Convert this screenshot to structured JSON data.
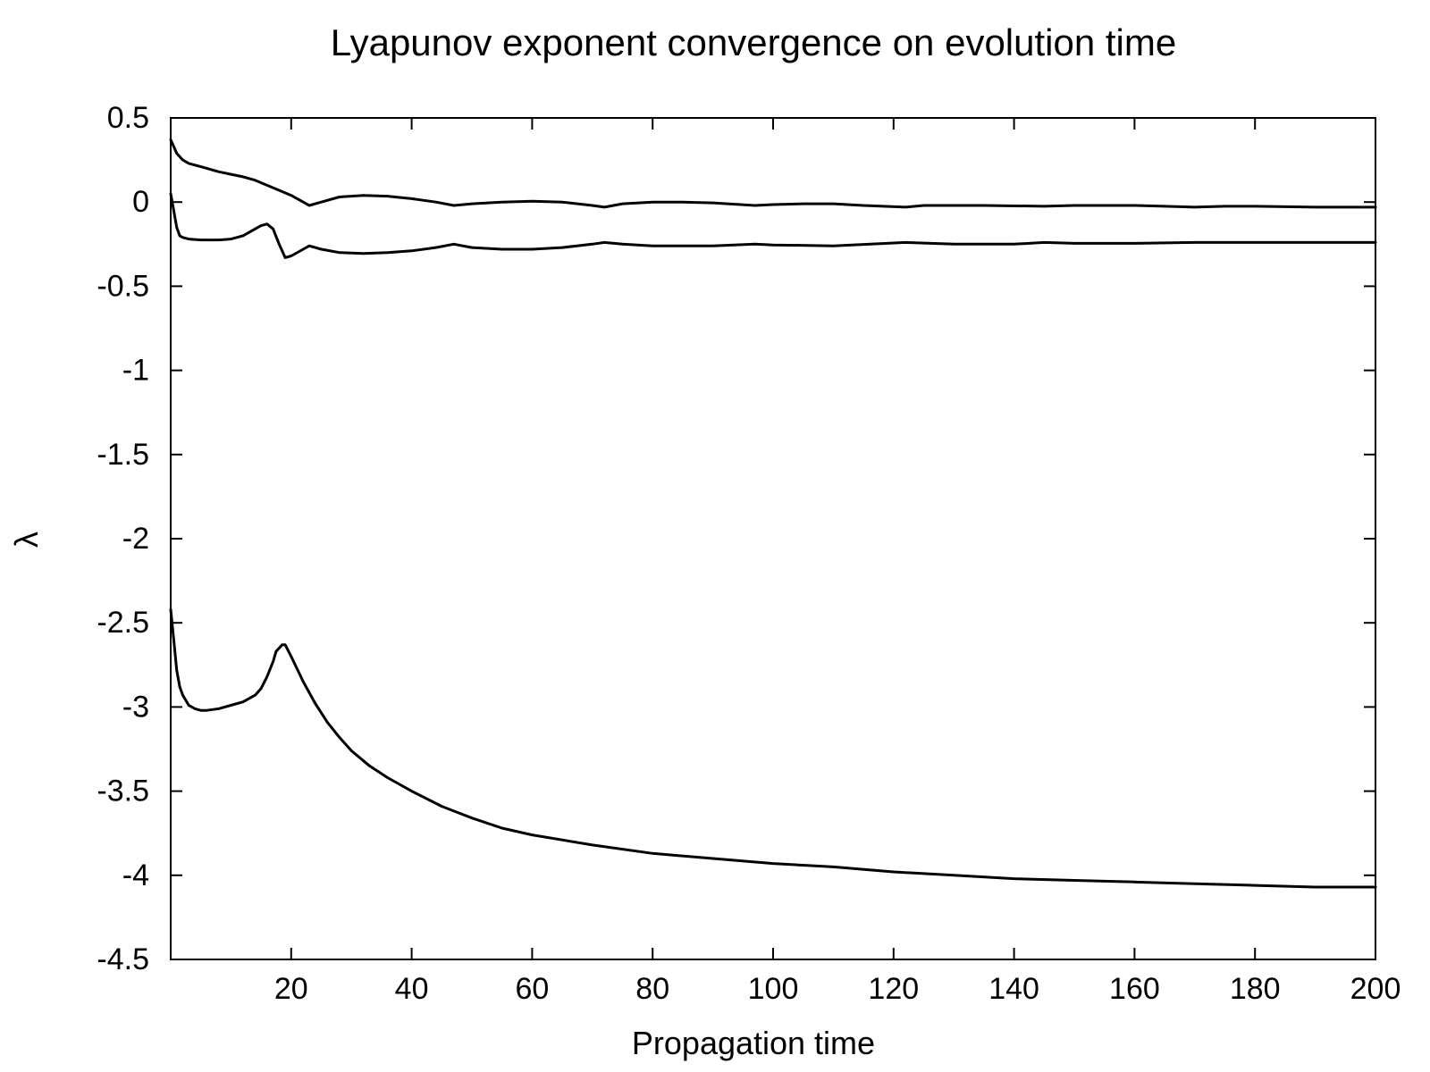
{
  "chart_data": {
    "type": "line",
    "title": "Lyapunov exponent convergence on evolution time",
    "xlabel": "Propagation time",
    "ylabel": "λ",
    "xlim": [
      0,
      200
    ],
    "ylim": [
      -4.5,
      0.5
    ],
    "xticks": [
      20,
      40,
      60,
      80,
      100,
      120,
      140,
      160,
      180,
      200
    ],
    "yticks": [
      0.5,
      0,
      -0.5,
      -1,
      -1.5,
      -2,
      -2.5,
      -3,
      -3.5,
      -4,
      -4.5
    ],
    "xtick_labels": [
      "20",
      "40",
      "60",
      "80",
      "100",
      "120",
      "140",
      "160",
      "180",
      "200"
    ],
    "ytick_labels": [
      "0.5",
      "0",
      "-0.5",
      "-1",
      "-1.5",
      "-2",
      "-2.5",
      "-3",
      "-3.5",
      "-4",
      "-4.5"
    ],
    "grid": false,
    "legend": "none",
    "line_color": "#000000",
    "series": [
      {
        "x": [
          0,
          0.5,
          1,
          2,
          3,
          5,
          8,
          10,
          12,
          14,
          16,
          18,
          20,
          22,
          23,
          25,
          28,
          32,
          36,
          40,
          44,
          47,
          50,
          55,
          60,
          65,
          70,
          72,
          75,
          80,
          85,
          90,
          97,
          100,
          105,
          110,
          115,
          122,
          125,
          130,
          135,
          145,
          150,
          155,
          160,
          165,
          170,
          175,
          180,
          190,
          200
        ],
        "y": [
          0.37,
          0.33,
          0.29,
          0.25,
          0.23,
          0.21,
          0.18,
          0.165,
          0.15,
          0.13,
          0.1,
          0.07,
          0.04,
          0.0,
          -0.02,
          0.0,
          0.03,
          0.04,
          0.035,
          0.02,
          0.0,
          -0.02,
          -0.01,
          0.0,
          0.005,
          0.0,
          -0.02,
          -0.03,
          -0.01,
          0.0,
          0.0,
          -0.005,
          -0.02,
          -0.015,
          -0.01,
          -0.01,
          -0.02,
          -0.03,
          -0.02,
          -0.02,
          -0.02,
          -0.025,
          -0.02,
          -0.02,
          -0.02,
          -0.025,
          -0.03,
          -0.025,
          -0.025,
          -0.03,
          -0.03
        ]
      },
      {
        "x": [
          0,
          0.5,
          1,
          1.5,
          2,
          3,
          5,
          8,
          10,
          12,
          14,
          15,
          16,
          17,
          18,
          19,
          20,
          22,
          23,
          25,
          28,
          32,
          36,
          40,
          44,
          47,
          50,
          55,
          60,
          65,
          70,
          72,
          75,
          80,
          90,
          97,
          100,
          110,
          122,
          130,
          140,
          145,
          150,
          160,
          170,
          180,
          190,
          200
        ],
        "y": [
          0.05,
          -0.05,
          -0.15,
          -0.2,
          -0.21,
          -0.22,
          -0.225,
          -0.225,
          -0.22,
          -0.2,
          -0.16,
          -0.14,
          -0.13,
          -0.16,
          -0.25,
          -0.33,
          -0.32,
          -0.28,
          -0.26,
          -0.28,
          -0.3,
          -0.305,
          -0.3,
          -0.29,
          -0.27,
          -0.25,
          -0.27,
          -0.28,
          -0.28,
          -0.27,
          -0.25,
          -0.24,
          -0.25,
          -0.26,
          -0.26,
          -0.25,
          -0.255,
          -0.26,
          -0.24,
          -0.25,
          -0.25,
          -0.24,
          -0.245,
          -0.245,
          -0.24,
          -0.24,
          -0.24,
          -0.24
        ]
      },
      {
        "x": [
          0,
          0.5,
          1,
          1.5,
          2,
          3,
          4,
          5,
          6,
          8,
          10,
          12,
          14,
          15,
          16,
          17,
          17.5,
          18,
          18.5,
          19,
          20,
          22,
          24,
          26,
          28,
          30,
          33,
          36,
          40,
          45,
          50,
          55,
          60,
          70,
          80,
          90,
          100,
          110,
          120,
          130,
          140,
          150,
          160,
          170,
          180,
          190,
          200
        ],
        "y": [
          -2.42,
          -2.6,
          -2.78,
          -2.88,
          -2.93,
          -2.99,
          -3.01,
          -3.02,
          -3.02,
          -3.01,
          -2.99,
          -2.97,
          -2.93,
          -2.89,
          -2.82,
          -2.73,
          -2.67,
          -2.65,
          -2.63,
          -2.63,
          -2.7,
          -2.85,
          -2.98,
          -3.09,
          -3.18,
          -3.26,
          -3.35,
          -3.42,
          -3.5,
          -3.59,
          -3.66,
          -3.72,
          -3.76,
          -3.82,
          -3.87,
          -3.9,
          -3.93,
          -3.95,
          -3.98,
          -4.0,
          -4.02,
          -4.03,
          -4.04,
          -4.05,
          -4.06,
          -4.07,
          -4.07
        ]
      }
    ]
  }
}
